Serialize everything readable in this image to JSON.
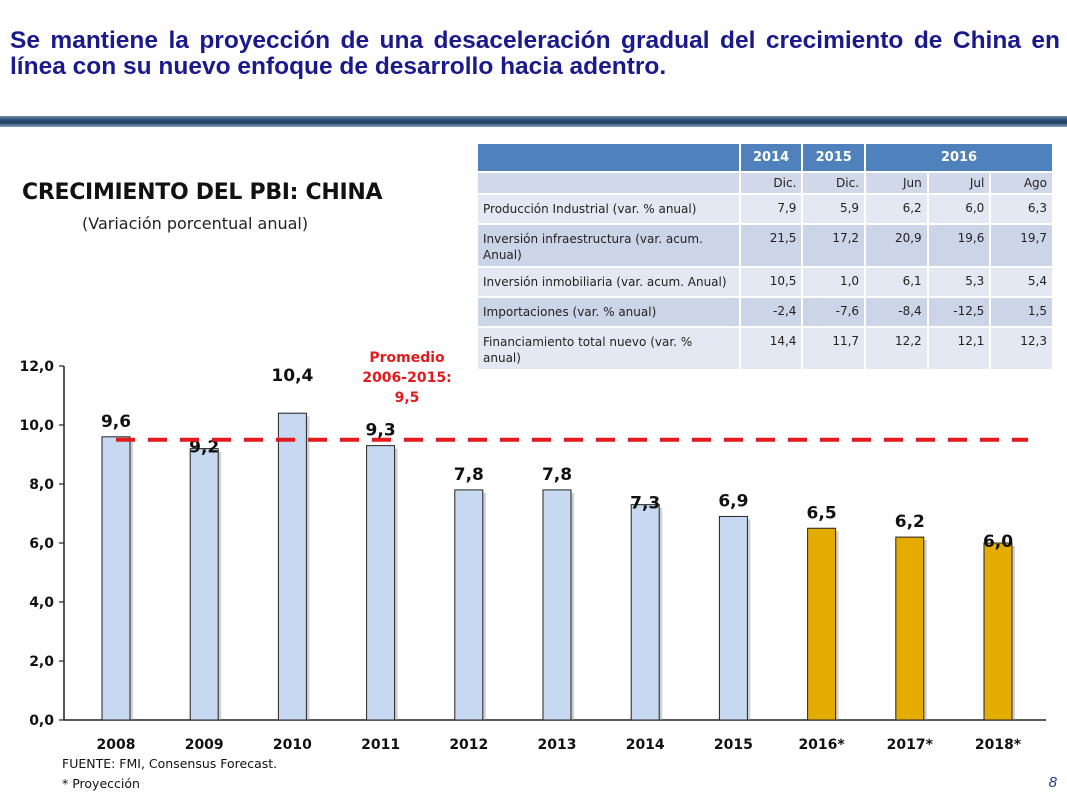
{
  "header": {
    "title": "Se mantiene la proyección de una desaceleración gradual del crecimiento de China en línea con su nuevo enfoque de desarrollo hacia adentro."
  },
  "chart_data": {
    "type": "bar",
    "title": "CRECIMIENTO DEL PBI: CHINA",
    "subtitle": "(Variación porcentual anual)",
    "categories": [
      "2008",
      "2009",
      "2010",
      "2011",
      "2012",
      "2013",
      "2014",
      "2015",
      "2016*",
      "2017*",
      "2018*"
    ],
    "values": [
      9.6,
      9.2,
      10.4,
      9.3,
      7.8,
      7.8,
      7.3,
      6.9,
      6.5,
      6.2,
      6.0
    ],
    "value_labels": [
      "9,6",
      "9,2",
      "10,4",
      "9,3",
      "7,8",
      "7,8",
      "7,3",
      "6,9",
      "6,5",
      "6,2",
      "6,0"
    ],
    "projected": [
      false,
      false,
      false,
      false,
      false,
      false,
      false,
      false,
      true,
      true,
      true
    ],
    "ylim": [
      0,
      12
    ],
    "yticks": [
      0,
      2,
      4,
      6,
      8,
      10,
      12
    ],
    "ytick_labels": [
      "0,0",
      "2,0",
      "4,0",
      "6,0",
      "8,0",
      "10,0",
      "12,0"
    ],
    "reference_line": {
      "value": 9.5,
      "label_lines": [
        "Promedio",
        "2006-2015:",
        "9,5"
      ],
      "color": "#e31a1c"
    },
    "colors": {
      "historical": "#c6d9f1",
      "projected": "#e5ac00",
      "bar_border": "#222222"
    },
    "xlabel": "",
    "ylabel": ""
  },
  "table": {
    "year_headers": [
      {
        "label": "2014",
        "colspan": 1
      },
      {
        "label": "2015",
        "colspan": 1
      },
      {
        "label": "2016",
        "colspan": 3
      }
    ],
    "sub_headers": [
      "Dic.",
      "Dic.",
      "Jun",
      "Jul",
      "Ago"
    ],
    "rows": [
      {
        "label": "Producción Industrial (var. % anual)",
        "values": [
          "7,9",
          "5,9",
          "6,2",
          "6,0",
          "6,3"
        ]
      },
      {
        "label": "Inversión infraestructura (var. acum. Anual)",
        "values": [
          "21,5",
          "17,2",
          "20,9",
          "19,6",
          "19,7"
        ]
      },
      {
        "label": "Inversión inmobiliaria (var. acum. Anual)",
        "values": [
          "10,5",
          "1,0",
          "6,1",
          "5,3",
          "5,4"
        ]
      },
      {
        "label": "Importaciones (var. % anual)",
        "values": [
          "-2,4",
          "-7,6",
          "-8,4",
          "-12,5",
          "1,5"
        ]
      },
      {
        "label": "Financiamiento total nuevo (var. % anual)",
        "values": [
          "14,4",
          "11,7",
          "12,2",
          "12,1",
          "12,3"
        ]
      }
    ]
  },
  "footer": {
    "source": "FUENTE: FMI, Consensus Forecast.",
    "note": "* Proyección",
    "page_number": "8"
  }
}
